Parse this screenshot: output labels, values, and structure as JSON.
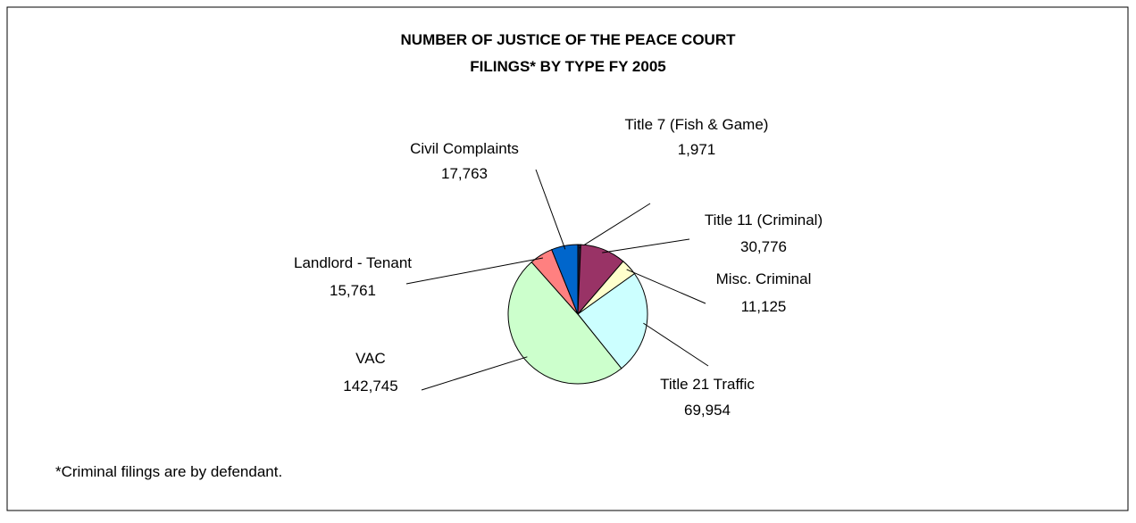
{
  "chart_data": {
    "type": "pie",
    "title": [
      "NUMBER OF JUSTICE OF THE PEACE COURT",
      "FILINGS* BY TYPE FY 2005"
    ],
    "categories": [
      "Title 7 (Fish & Game)",
      "Title 11 (Criminal)",
      "Misc. Criminal",
      "Title 21 Traffic",
      "VAC",
      "Landlord - Tenant",
      "Civil Complaints"
    ],
    "values": [
      1971,
      30776,
      11125,
      69954,
      142745,
      15761,
      17763
    ],
    "value_labels": [
      "1,971",
      "30,776",
      "11,125",
      "69,954",
      "142,745",
      "15,761",
      "17,763"
    ],
    "colors": [
      "#1c1c3c",
      "#993366",
      "#ffffcc",
      "#ccffff",
      "#ccffcc",
      "#ff8080",
      "#0066cc"
    ],
    "footnote": "*Criminal filings are by defendant."
  }
}
